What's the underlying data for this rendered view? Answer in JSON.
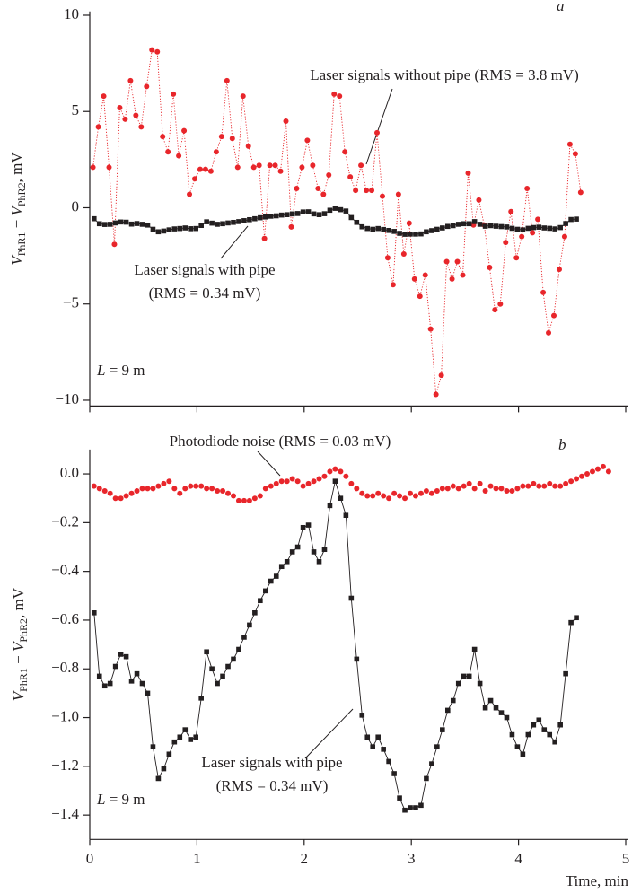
{
  "chart_data": [
    {
      "type": "line",
      "panel_label": "a",
      "ylabel": [
        "V",
        "PhR1",
        " − ",
        "V",
        "PhR2",
        ", mV"
      ],
      "xlim": [
        0,
        5
      ],
      "xticks": [
        0,
        1,
        2,
        3,
        4,
        5
      ],
      "ylim": [
        -10.3,
        10.2
      ],
      "yticks": [
        10,
        5,
        0,
        {
          "value": -5,
          "label": "−5"
        },
        {
          "value": -10,
          "label": "−10"
        }
      ],
      "annotations": [
        "Laser signals without pipe (RMS = 3.8 mV)",
        "Laser signals with pipe",
        "(RMS = 0.34 mV)"
      ],
      "length_label": [
        "L",
        " = 9 m"
      ],
      "series": [
        {
          "color": "#e8262b",
          "marker": "circle",
          "line": "dotted",
          "x": [
            0.03,
            0.08,
            0.13,
            0.18,
            0.23,
            0.28,
            0.33,
            0.38,
            0.43,
            0.48,
            0.53,
            0.58,
            0.63,
            0.68,
            0.73,
            0.78,
            0.83,
            0.88,
            0.93,
            0.98,
            1.03,
            1.08,
            1.13,
            1.18,
            1.23,
            1.28,
            1.33,
            1.38,
            1.43,
            1.48,
            1.53,
            1.58,
            1.63,
            1.68,
            1.73,
            1.78,
            1.83,
            1.88,
            1.93,
            1.98,
            2.03,
            2.08,
            2.13,
            2.18,
            2.23,
            2.28,
            2.33,
            2.38,
            2.43,
            2.48,
            2.53,
            2.58,
            2.63,
            2.68,
            2.73,
            2.78,
            2.83,
            2.88,
            2.93,
            2.98,
            3.03,
            3.08,
            3.13,
            3.18,
            3.23,
            3.28,
            3.33,
            3.38,
            3.43,
            3.48,
            3.53,
            3.58,
            3.63,
            3.68,
            3.73,
            3.78,
            3.83,
            3.88,
            3.93,
            3.98,
            4.03,
            4.08,
            4.13,
            4.18,
            4.23,
            4.28,
            4.33,
            4.38,
            4.43,
            4.48,
            4.53,
            4.58
          ],
          "values": [
            2.1,
            4.2,
            5.8,
            2.1,
            -1.9,
            5.2,
            4.6,
            6.6,
            4.8,
            4.2,
            6.3,
            8.2,
            8.1,
            3.7,
            2.9,
            5.9,
            2.7,
            4.0,
            0.7,
            1.5,
            2.0,
            2.0,
            1.9,
            2.9,
            3.7,
            6.6,
            3.6,
            2.1,
            5.8,
            3.2,
            2.1,
            2.2,
            -1.6,
            2.2,
            2.2,
            1.9,
            4.5,
            -1.0,
            1.0,
            2.1,
            3.5,
            2.2,
            1.0,
            0.7,
            1.7,
            5.9,
            5.8,
            2.9,
            1.6,
            0.9,
            2.2,
            0.9,
            0.9,
            3.9,
            0.6,
            -2.6,
            -4.0,
            0.7,
            -2.4,
            -0.8,
            -3.7,
            -4.6,
            -3.5,
            -6.3,
            -9.7,
            -8.7,
            -2.8,
            -3.7,
            -2.8,
            -3.5,
            1.8,
            -0.9,
            0.4,
            -0.9,
            -3.1,
            -5.3,
            -5.0,
            -1.8,
            -0.2,
            -2.6,
            -1.5,
            1.0,
            -1.3,
            -0.6,
            -4.4,
            -6.5,
            -5.6,
            -3.2,
            -1.5,
            3.3,
            2.8,
            0.8
          ]
        },
        {
          "color": "#231f20",
          "marker": "square",
          "line": "solid",
          "x": [
            0.04,
            0.09,
            0.14,
            0.19,
            0.24,
            0.29,
            0.34,
            0.39,
            0.44,
            0.49,
            0.54,
            0.59,
            0.64,
            0.69,
            0.74,
            0.79,
            0.84,
            0.89,
            0.94,
            0.99,
            1.04,
            1.09,
            1.14,
            1.19,
            1.24,
            1.29,
            1.34,
            1.39,
            1.44,
            1.49,
            1.54,
            1.59,
            1.64,
            1.69,
            1.74,
            1.79,
            1.84,
            1.89,
            1.94,
            1.99,
            2.04,
            2.09,
            2.14,
            2.19,
            2.24,
            2.29,
            2.34,
            2.39,
            2.44,
            2.49,
            2.54,
            2.59,
            2.64,
            2.69,
            2.74,
            2.79,
            2.84,
            2.89,
            2.94,
            2.99,
            3.04,
            3.09,
            3.14,
            3.19,
            3.24,
            3.29,
            3.34,
            3.39,
            3.44,
            3.49,
            3.54,
            3.59,
            3.64,
            3.69,
            3.74,
            3.79,
            3.84,
            3.89,
            3.94,
            3.99,
            4.04,
            4.09,
            4.14,
            4.19,
            4.24,
            4.29,
            4.34,
            4.39,
            4.44,
            4.49,
            4.54
          ],
          "values": [
            -0.57,
            -0.83,
            -0.87,
            -0.86,
            -0.79,
            -0.74,
            -0.75,
            -0.85,
            -0.82,
            -0.86,
            -0.9,
            -1.12,
            -1.25,
            -1.21,
            -1.15,
            -1.1,
            -1.08,
            -1.05,
            -1.09,
            -1.08,
            -0.92,
            -0.73,
            -0.8,
            -0.86,
            -0.83,
            -0.79,
            -0.76,
            -0.72,
            -0.67,
            -0.62,
            -0.57,
            -0.52,
            -0.48,
            -0.44,
            -0.42,
            -0.38,
            -0.36,
            -0.32,
            -0.3,
            -0.22,
            -0.21,
            -0.32,
            -0.36,
            -0.31,
            -0.13,
            -0.03,
            -0.1,
            -0.17,
            -0.51,
            -0.76,
            -0.99,
            -1.08,
            -1.12,
            -1.08,
            -1.13,
            -1.18,
            -1.23,
            -1.33,
            -1.38,
            -1.37,
            -1.37,
            -1.36,
            -1.25,
            -1.19,
            -1.12,
            -1.05,
            -0.97,
            -0.93,
            -0.86,
            -0.83,
            -0.83,
            -0.72,
            -0.86,
            -0.96,
            -0.93,
            -0.96,
            -0.98,
            -1.0,
            -1.07,
            -1.12,
            -1.15,
            -1.07,
            -1.03,
            -1.01,
            -1.05,
            -1.07,
            -1.1,
            -1.03,
            -0.82,
            -0.61,
            -0.59
          ]
        }
      ]
    },
    {
      "type": "line",
      "panel_label": "b",
      "ylabel": [
        "V",
        "PhR1",
        " − ",
        "V",
        "PhR2",
        ", mV"
      ],
      "xlabel": "Time, min",
      "xlim": [
        0,
        5
      ],
      "xticks": [
        0,
        1,
        2,
        3,
        4,
        5
      ],
      "ylim": [
        -1.5,
        0.1
      ],
      "yticks": [
        {
          "value": 0,
          "label": "0.0"
        },
        {
          "value": -0.2,
          "label": "−0.2"
        },
        {
          "value": -0.4,
          "label": "−0.4"
        },
        {
          "value": -0.6,
          "label": "−0.6"
        },
        {
          "value": -0.8,
          "label": "−0.8"
        },
        {
          "value": -1.0,
          "label": "−1.0"
        },
        {
          "value": -1.2,
          "label": "−1.2"
        },
        {
          "value": -1.4,
          "label": "−1.4"
        }
      ],
      "annotations": [
        "Photodiode noise (RMS = 0.03 mV)",
        "Laser signals with pipe",
        "(RMS = 0.34 mV)"
      ],
      "length_label": [
        "L",
        " = 9 m"
      ],
      "series": [
        {
          "color": "#e8262b",
          "marker": "circle",
          "line": "none",
          "x": [
            0.04,
            0.09,
            0.14,
            0.19,
            0.24,
            0.29,
            0.34,
            0.39,
            0.44,
            0.49,
            0.54,
            0.59,
            0.64,
            0.69,
            0.74,
            0.79,
            0.84,
            0.89,
            0.94,
            0.99,
            1.04,
            1.09,
            1.14,
            1.19,
            1.24,
            1.29,
            1.34,
            1.39,
            1.44,
            1.49,
            1.54,
            1.59,
            1.64,
            1.69,
            1.74,
            1.79,
            1.84,
            1.89,
            1.94,
            1.99,
            2.04,
            2.09,
            2.14,
            2.19,
            2.24,
            2.29,
            2.34,
            2.39,
            2.44,
            2.49,
            2.54,
            2.59,
            2.64,
            2.69,
            2.74,
            2.79,
            2.84,
            2.89,
            2.94,
            2.99,
            3.04,
            3.09,
            3.14,
            3.19,
            3.24,
            3.29,
            3.34,
            3.39,
            3.44,
            3.49,
            3.54,
            3.59,
            3.64,
            3.69,
            3.74,
            3.79,
            3.84,
            3.89,
            3.94,
            3.99,
            4.04,
            4.09,
            4.14,
            4.19,
            4.24,
            4.29,
            4.34,
            4.39,
            4.44,
            4.49,
            4.54,
            4.59,
            4.64,
            4.69,
            4.74,
            4.79,
            4.84
          ],
          "values": [
            -0.05,
            -0.06,
            -0.07,
            -0.08,
            -0.1,
            -0.1,
            -0.09,
            -0.08,
            -0.07,
            -0.06,
            -0.06,
            -0.06,
            -0.05,
            -0.04,
            -0.03,
            -0.06,
            -0.08,
            -0.06,
            -0.05,
            -0.05,
            -0.05,
            -0.06,
            -0.06,
            -0.07,
            -0.07,
            -0.08,
            -0.09,
            -0.11,
            -0.11,
            -0.11,
            -0.1,
            -0.09,
            -0.06,
            -0.05,
            -0.04,
            -0.03,
            -0.03,
            -0.02,
            -0.03,
            -0.05,
            -0.04,
            -0.03,
            -0.02,
            -0.01,
            0.01,
            0.02,
            0.01,
            -0.01,
            -0.04,
            -0.06,
            -0.08,
            -0.09,
            -0.09,
            -0.08,
            -0.09,
            -0.1,
            -0.08,
            -0.09,
            -0.1,
            -0.08,
            -0.09,
            -0.08,
            -0.07,
            -0.08,
            -0.07,
            -0.06,
            -0.06,
            -0.05,
            -0.06,
            -0.05,
            -0.04,
            -0.06,
            -0.04,
            -0.07,
            -0.05,
            -0.06,
            -0.06,
            -0.07,
            -0.07,
            -0.06,
            -0.05,
            -0.05,
            -0.04,
            -0.05,
            -0.05,
            -0.04,
            -0.05,
            -0.05,
            -0.04,
            -0.03,
            -0.02,
            -0.01,
            0.0,
            0.01,
            0.02,
            0.03,
            0.01
          ]
        },
        {
          "color": "#231f20",
          "marker": "square",
          "line": "solid",
          "x": [
            0.04,
            0.09,
            0.14,
            0.19,
            0.24,
            0.29,
            0.34,
            0.39,
            0.44,
            0.49,
            0.54,
            0.59,
            0.64,
            0.69,
            0.74,
            0.79,
            0.84,
            0.89,
            0.94,
            0.99,
            1.04,
            1.09,
            1.14,
            1.19,
            1.24,
            1.29,
            1.34,
            1.39,
            1.44,
            1.49,
            1.54,
            1.59,
            1.64,
            1.69,
            1.74,
            1.79,
            1.84,
            1.89,
            1.94,
            1.99,
            2.04,
            2.09,
            2.14,
            2.19,
            2.24,
            2.29,
            2.34,
            2.39,
            2.44,
            2.49,
            2.54,
            2.59,
            2.64,
            2.69,
            2.74,
            2.79,
            2.84,
            2.89,
            2.94,
            2.99,
            3.04,
            3.09,
            3.14,
            3.19,
            3.24,
            3.29,
            3.34,
            3.39,
            3.44,
            3.49,
            3.54,
            3.59,
            3.64,
            3.69,
            3.74,
            3.79,
            3.84,
            3.89,
            3.94,
            3.99,
            4.04,
            4.09,
            4.14,
            4.19,
            4.24,
            4.29,
            4.34,
            4.39,
            4.44,
            4.49,
            4.54
          ],
          "values": [
            -0.57,
            -0.83,
            -0.87,
            -0.86,
            -0.79,
            -0.74,
            -0.75,
            -0.85,
            -0.82,
            -0.86,
            -0.9,
            -1.12,
            -1.25,
            -1.21,
            -1.15,
            -1.1,
            -1.08,
            -1.05,
            -1.09,
            -1.08,
            -0.92,
            -0.73,
            -0.8,
            -0.86,
            -0.83,
            -0.79,
            -0.76,
            -0.72,
            -0.67,
            -0.62,
            -0.57,
            -0.52,
            -0.48,
            -0.44,
            -0.42,
            -0.38,
            -0.36,
            -0.32,
            -0.3,
            -0.22,
            -0.21,
            -0.32,
            -0.36,
            -0.31,
            -0.13,
            -0.03,
            -0.1,
            -0.17,
            -0.51,
            -0.76,
            -0.99,
            -1.08,
            -1.12,
            -1.08,
            -1.13,
            -1.18,
            -1.23,
            -1.33,
            -1.38,
            -1.37,
            -1.37,
            -1.36,
            -1.25,
            -1.19,
            -1.12,
            -1.05,
            -0.97,
            -0.93,
            -0.86,
            -0.83,
            -0.83,
            -0.72,
            -0.86,
            -0.96,
            -0.93,
            -0.96,
            -0.98,
            -1.0,
            -1.07,
            -1.12,
            -1.15,
            -1.07,
            -1.03,
            -1.01,
            -1.05,
            -1.07,
            -1.1,
            -1.03,
            -0.82,
            -0.61,
            -0.59
          ]
        }
      ]
    }
  ]
}
